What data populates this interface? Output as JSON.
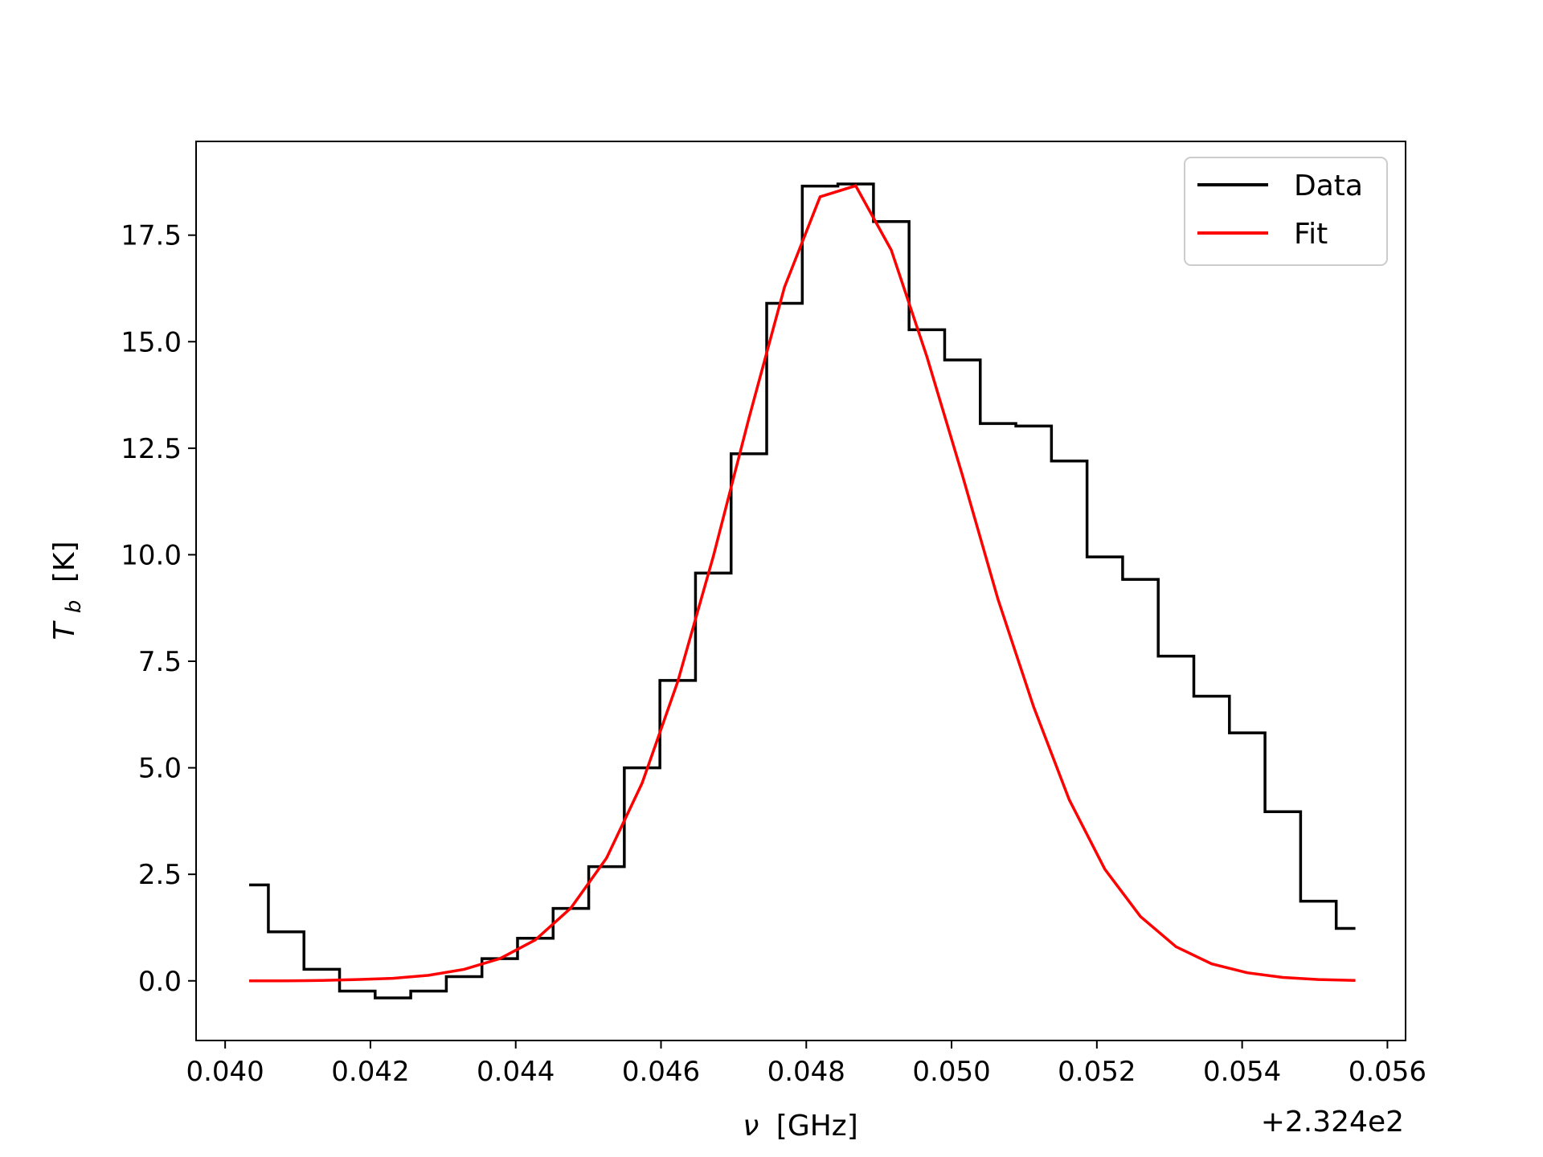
{
  "chart_data": {
    "type": "line",
    "xlabel_symbol": "ν",
    "xlabel_unit": "[GHz]",
    "ylabel_symbol": "T",
    "ylabel_subscript": "b",
    "ylabel_unit": "[K]",
    "x_offset_label": "+2.324e2",
    "xlim": [
      0.0396,
      0.05625
    ],
    "ylim": [
      -1.4,
      19.7
    ],
    "x_ticks": [
      0.04,
      0.042,
      0.044,
      0.046,
      0.048,
      0.05,
      0.052,
      0.054,
      0.056
    ],
    "x_tick_labels": [
      "0.040",
      "0.042",
      "0.044",
      "0.046",
      "0.048",
      "0.050",
      "0.052",
      "0.054",
      "0.056"
    ],
    "y_ticks": [
      0.0,
      2.5,
      5.0,
      7.5,
      10.0,
      12.5,
      15.0,
      17.5
    ],
    "y_tick_labels": [
      "0.0",
      "2.5",
      "5.0",
      "7.5",
      "10.0",
      "12.5",
      "15.0",
      "17.5"
    ],
    "grid": false,
    "legend_position": "top-right",
    "series": [
      {
        "name": "Data",
        "style": "steps-mid",
        "color": "#000000",
        "x": [
          0.04035,
          0.04084,
          0.04133,
          0.04182,
          0.04231,
          0.0428,
          0.04329,
          0.04378,
          0.04427,
          0.04476,
          0.04525,
          0.04574,
          0.04623,
          0.04672,
          0.04721,
          0.0477,
          0.04819,
          0.04868,
          0.04917,
          0.04966,
          0.05015,
          0.05064,
          0.05113,
          0.05162,
          0.05211,
          0.0526,
          0.05309,
          0.05358,
          0.05407,
          0.05456,
          0.05505,
          0.05554
        ],
        "y": [
          2.25,
          1.15,
          0.27,
          -0.24,
          -0.4,
          -0.24,
          0.1,
          0.52,
          1.0,
          1.7,
          2.68,
          5.0,
          7.05,
          9.57,
          12.37,
          15.9,
          18.65,
          18.7,
          17.82,
          15.28,
          14.57,
          13.08,
          13.02,
          12.2,
          9.95,
          9.42,
          7.62,
          6.68,
          5.82,
          3.97,
          1.87,
          1.23
        ]
      },
      {
        "name": "Fit",
        "style": "line",
        "color": "#ff0000",
        "x": [
          0.04035,
          0.04084,
          0.04133,
          0.04182,
          0.04231,
          0.0428,
          0.04329,
          0.04378,
          0.04427,
          0.04476,
          0.04525,
          0.04574,
          0.04623,
          0.04672,
          0.04721,
          0.0477,
          0.04819,
          0.04868,
          0.04917,
          0.04966,
          0.05015,
          0.05064,
          0.05113,
          0.05162,
          0.05211,
          0.0526,
          0.05309,
          0.05358,
          0.05407,
          0.05456,
          0.05505,
          0.05554
        ],
        "y": [
          0.0,
          0.0,
          0.01,
          0.03,
          0.06,
          0.13,
          0.27,
          0.52,
          0.96,
          1.71,
          2.88,
          4.64,
          7.02,
          9.96,
          13.2,
          16.28,
          18.4,
          18.66,
          17.15,
          14.65,
          11.86,
          8.95,
          6.43,
          4.25,
          2.62,
          1.51,
          0.8,
          0.4,
          0.19,
          0.08,
          0.03,
          0.01
        ]
      }
    ]
  }
}
